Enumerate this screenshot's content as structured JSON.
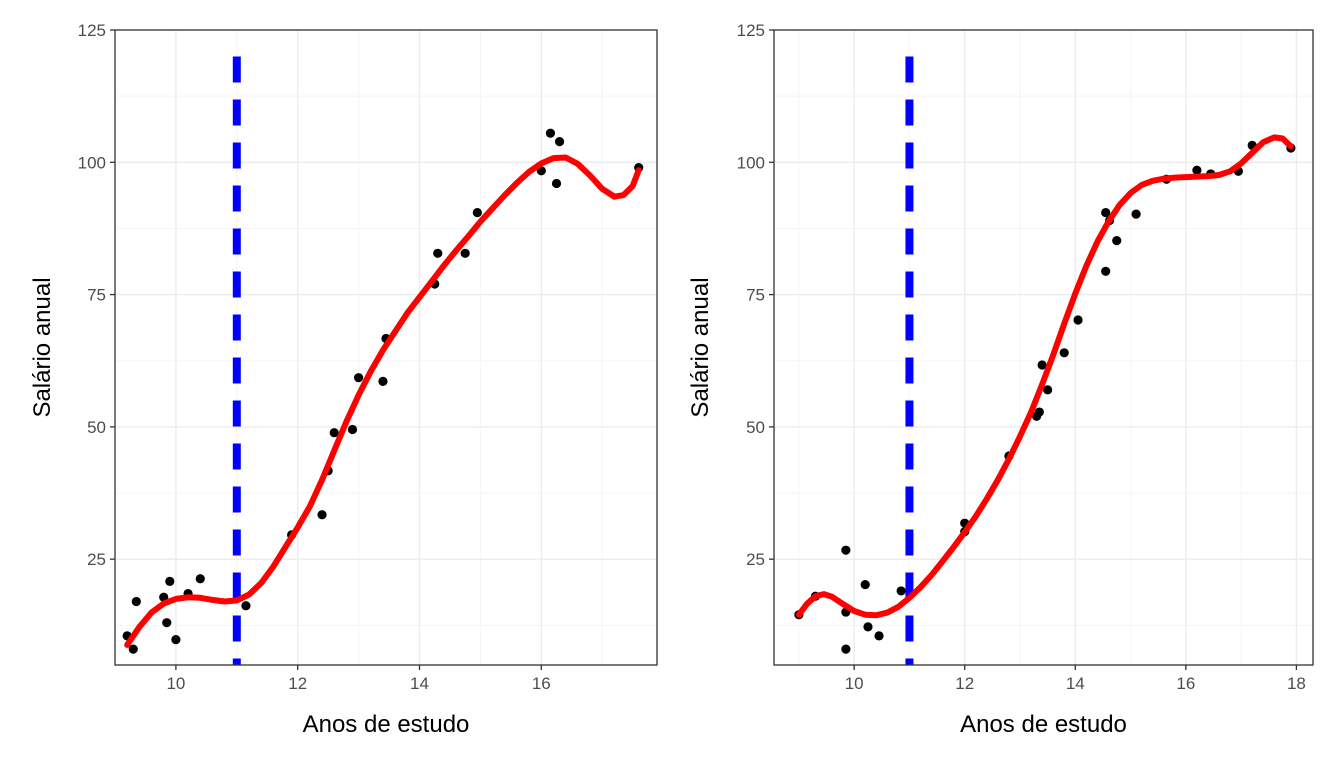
{
  "colors": {
    "points": "#000000",
    "smooth_line": "#ff0000",
    "vline": "#0000ff",
    "grid_major": "#ebebeb",
    "grid_minor": "#f5f5f5",
    "panel_border": "#333333"
  },
  "chart_data": [
    {
      "type": "scatter",
      "xlabel": "Anos de estudo",
      "ylabel": "Salário anual",
      "xlim": [
        9.0,
        17.9
      ],
      "ylim": [
        5.0,
        125.0
      ],
      "xticks": [
        10,
        12,
        14,
        16,
        18
      ],
      "yticks": [
        25,
        50,
        75,
        100,
        125
      ],
      "grid": true,
      "vline_x": 11,
      "vline_style": "dashed",
      "points": [
        [
          9.2,
          10.5
        ],
        [
          9.3,
          8.0
        ],
        [
          9.35,
          17.0
        ],
        [
          9.8,
          17.8
        ],
        [
          9.85,
          13.0
        ],
        [
          9.9,
          20.8
        ],
        [
          10.0,
          9.8
        ],
        [
          10.2,
          18.5
        ],
        [
          10.4,
          21.3
        ],
        [
          11.15,
          16.2
        ],
        [
          11.9,
          29.6
        ],
        [
          12.4,
          33.4
        ],
        [
          12.5,
          41.7
        ],
        [
          12.6,
          48.9
        ],
        [
          12.9,
          49.5
        ],
        [
          13.0,
          59.3
        ],
        [
          13.4,
          58.6
        ],
        [
          13.45,
          66.7
        ],
        [
          14.25,
          77.0
        ],
        [
          14.3,
          82.8
        ],
        [
          14.75,
          82.8
        ],
        [
          14.95,
          90.5
        ],
        [
          16.0,
          98.4
        ],
        [
          16.15,
          105.5
        ],
        [
          16.25,
          96.0
        ],
        [
          16.3,
          103.9
        ],
        [
          17.6,
          99.0
        ]
      ],
      "smooth": [
        [
          9.2,
          8.8
        ],
        [
          9.4,
          12.2
        ],
        [
          9.6,
          14.9
        ],
        [
          9.8,
          16.6
        ],
        [
          10.0,
          17.5
        ],
        [
          10.2,
          17.8
        ],
        [
          10.4,
          17.7
        ],
        [
          10.6,
          17.3
        ],
        [
          10.8,
          17.0
        ],
        [
          11.0,
          17.2
        ],
        [
          11.2,
          18.3
        ],
        [
          11.4,
          20.5
        ],
        [
          11.6,
          23.6
        ],
        [
          11.8,
          27.3
        ],
        [
          12.0,
          31.0
        ],
        [
          12.2,
          35.0
        ],
        [
          12.4,
          40.0
        ],
        [
          12.6,
          45.5
        ],
        [
          12.8,
          51.0
        ],
        [
          13.0,
          56.0
        ],
        [
          13.2,
          60.5
        ],
        [
          13.4,
          64.5
        ],
        [
          13.6,
          68.0
        ],
        [
          13.8,
          71.5
        ],
        [
          14.0,
          74.5
        ],
        [
          14.2,
          77.5
        ],
        [
          14.4,
          80.5
        ],
        [
          14.6,
          83.3
        ],
        [
          14.8,
          86.0
        ],
        [
          15.0,
          88.8
        ],
        [
          15.2,
          91.3
        ],
        [
          15.4,
          93.8
        ],
        [
          15.6,
          96.1
        ],
        [
          15.8,
          98.2
        ],
        [
          16.0,
          99.8
        ],
        [
          16.2,
          100.8
        ],
        [
          16.4,
          100.9
        ],
        [
          16.6,
          99.7
        ],
        [
          16.8,
          97.5
        ],
        [
          17.0,
          95.0
        ],
        [
          17.2,
          93.5
        ],
        [
          17.35,
          93.8
        ],
        [
          17.5,
          95.5
        ],
        [
          17.6,
          98.5
        ]
      ]
    },
    {
      "type": "scatter",
      "xlabel": "Anos de estudo",
      "ylabel": "Salário anual",
      "xlim": [
        8.55,
        18.3
      ],
      "ylim": [
        5.0,
        125.0
      ],
      "xticks": [
        10,
        12,
        14,
        16,
        18
      ],
      "yticks": [
        25,
        50,
        75,
        100,
        125
      ],
      "grid": true,
      "vline_x": 11,
      "vline_style": "dashed",
      "points": [
        [
          9.0,
          14.5
        ],
        [
          9.3,
          18.0
        ],
        [
          9.85,
          26.7
        ],
        [
          9.85,
          15.0
        ],
        [
          9.85,
          8.0
        ],
        [
          10.2,
          20.2
        ],
        [
          10.25,
          12.2
        ],
        [
          10.45,
          10.5
        ],
        [
          10.85,
          19.0
        ],
        [
          12.0,
          31.8
        ],
        [
          12.0,
          30.2
        ],
        [
          12.8,
          44.5
        ],
        [
          13.3,
          52.0
        ],
        [
          13.35,
          52.8
        ],
        [
          13.4,
          61.7
        ],
        [
          13.5,
          57.0
        ],
        [
          13.8,
          64.0
        ],
        [
          14.05,
          70.2
        ],
        [
          14.55,
          79.4
        ],
        [
          14.55,
          90.5
        ],
        [
          14.62,
          89.0
        ],
        [
          14.75,
          85.2
        ],
        [
          15.1,
          90.2
        ],
        [
          15.65,
          96.8
        ],
        [
          16.2,
          98.5
        ],
        [
          16.45,
          97.8
        ],
        [
          16.95,
          98.3
        ],
        [
          17.2,
          103.2
        ],
        [
          17.9,
          102.7
        ]
      ],
      "smooth": [
        [
          9.0,
          14.5
        ],
        [
          9.15,
          16.6
        ],
        [
          9.3,
          18.0
        ],
        [
          9.45,
          18.4
        ],
        [
          9.6,
          17.9
        ],
        [
          9.8,
          16.5
        ],
        [
          10.0,
          15.2
        ],
        [
          10.2,
          14.5
        ],
        [
          10.4,
          14.4
        ],
        [
          10.6,
          14.9
        ],
        [
          10.8,
          16.0
        ],
        [
          11.0,
          17.7
        ],
        [
          11.2,
          19.7
        ],
        [
          11.4,
          22.0
        ],
        [
          11.6,
          24.6
        ],
        [
          11.8,
          27.3
        ],
        [
          12.0,
          30.1
        ],
        [
          12.2,
          33.1
        ],
        [
          12.4,
          36.4
        ],
        [
          12.6,
          40.0
        ],
        [
          12.8,
          43.9
        ],
        [
          13.0,
          48.2
        ],
        [
          13.2,
          52.8
        ],
        [
          13.4,
          58.0
        ],
        [
          13.6,
          63.6
        ],
        [
          13.8,
          69.5
        ],
        [
          14.0,
          75.2
        ],
        [
          14.2,
          80.4
        ],
        [
          14.4,
          85.0
        ],
        [
          14.6,
          88.8
        ],
        [
          14.8,
          91.9
        ],
        [
          15.0,
          94.2
        ],
        [
          15.2,
          95.7
        ],
        [
          15.4,
          96.5
        ],
        [
          15.6,
          96.9
        ],
        [
          15.8,
          97.1
        ],
        [
          16.0,
          97.2
        ],
        [
          16.2,
          97.3
        ],
        [
          16.4,
          97.4
        ],
        [
          16.6,
          97.6
        ],
        [
          16.8,
          98.3
        ],
        [
          17.0,
          99.8
        ],
        [
          17.2,
          101.8
        ],
        [
          17.4,
          103.8
        ],
        [
          17.6,
          104.7
        ],
        [
          17.75,
          104.5
        ],
        [
          17.9,
          103.0
        ]
      ]
    }
  ]
}
